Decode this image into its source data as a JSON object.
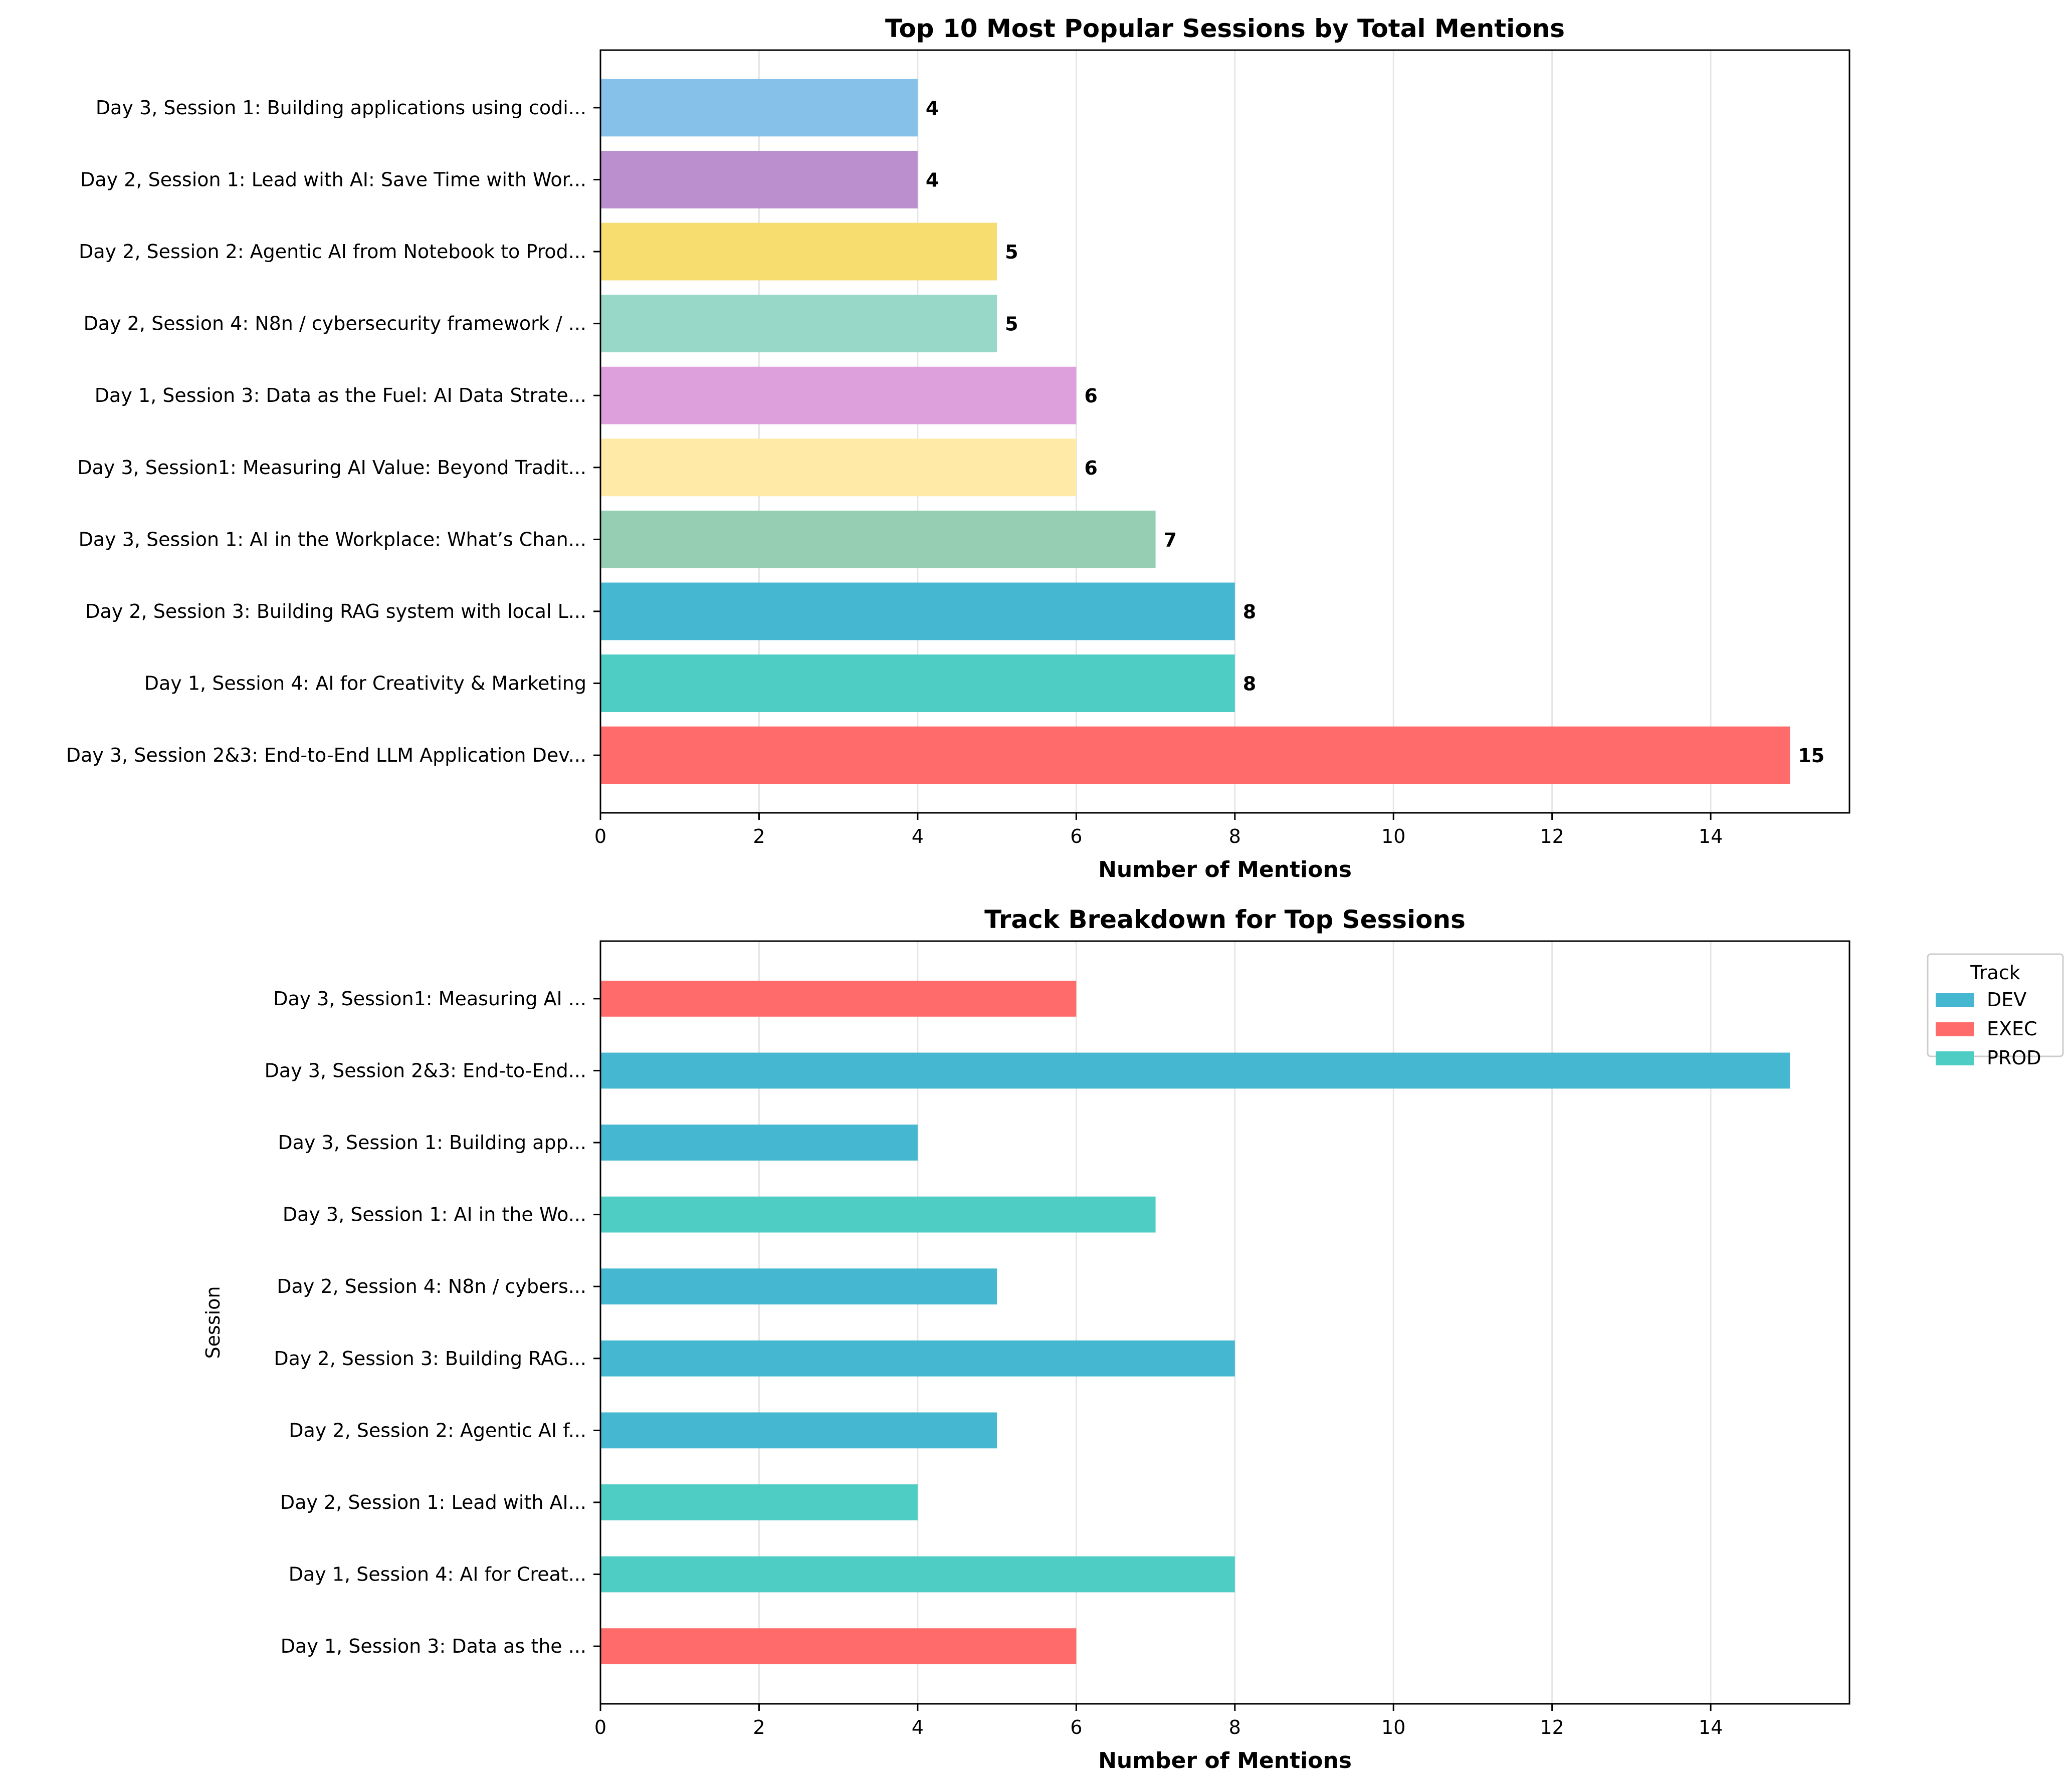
{
  "chart_data": [
    {
      "type": "bar",
      "orientation": "horizontal",
      "title": "Top 10 Most Popular Sessions by Total Mentions",
      "xlabel": "Number of Mentions",
      "ylabel": "",
      "xlim": [
        0,
        15.75
      ],
      "xticks": [
        "0",
        "2",
        "4",
        "6",
        "8",
        "10",
        "12",
        "14"
      ],
      "grid": "x",
      "categories": [
        "Day 3, Session 2&3: End-to-End LLM Application Dev...",
        "Day 1, Session 4: AI for Creativity & Marketing",
        "Day 2, Session 3: Building RAG system with local L...",
        "Day 3, Session 1: AI in the Workplace: What’s Chan...",
        "Day 3, Session1: Measuring AI Value: Beyond Tradit...",
        "Day 1, Session 3: Data as the Fuel: AI Data Strate...",
        "Day 2, Session 4: N8n / cybersecurity framework / ...",
        "Day 2, Session 2: Agentic AI from Notebook to Prod...",
        "Day 2, Session 1: Lead with AI: Save Time with Wor...",
        "Day 3, Session 1: Building applications using codi..."
      ],
      "values": [
        15,
        8,
        8,
        7,
        6,
        6,
        5,
        5,
        4,
        4
      ],
      "data_labels": [
        "15",
        "8",
        "8",
        "7",
        "6",
        "6",
        "5",
        "5",
        "4",
        "4"
      ],
      "colors": [
        "#FF6B6B",
        "#4ECDC4",
        "#45B7D1",
        "#96CEB4",
        "#FFEAA7",
        "#DDA0DD",
        "#98D8C8",
        "#F7DC6F",
        "#BB8FCE",
        "#85C1E9"
      ]
    },
    {
      "type": "bar",
      "orientation": "horizontal",
      "title": "Track Breakdown for Top Sessions",
      "xlabel": "Number of Mentions",
      "ylabel": "Session",
      "xlim": [
        0,
        15.75
      ],
      "xticks": [
        "0",
        "2",
        "4",
        "6",
        "8",
        "10",
        "12",
        "14"
      ],
      "grid": "x",
      "legend": {
        "title": "Track",
        "placement": "outside upper right"
      },
      "categories": [
        "Day 1, Session 3: Data as the ...",
        "Day 1, Session 4: AI for Creat...",
        "Day 2, Session 1: Lead with AI...",
        "Day 2, Session 2: Agentic AI f...",
        "Day 2, Session 3: Building RAG...",
        "Day 2, Session 4: N8n / cybers...",
        "Day 3, Session 1: AI in the Wo...",
        "Day 3, Session 1: Building app...",
        "Day 3, Session 2&3: End-to-End...",
        "Day 3, Session1: Measuring AI ..."
      ],
      "series": [
        {
          "name": "DEV",
          "color": "#45B7D1",
          "values": [
            0,
            0,
            0,
            5,
            8,
            5,
            0,
            4,
            15,
            0
          ]
        },
        {
          "name": "EXEC",
          "color": "#FF6B6B",
          "values": [
            6,
            0,
            0,
            0,
            0,
            0,
            0,
            0,
            0,
            6
          ]
        },
        {
          "name": "PROD",
          "color": "#4ECDC4",
          "values": [
            0,
            8,
            4,
            0,
            0,
            0,
            7,
            0,
            0,
            0
          ]
        }
      ]
    }
  ]
}
